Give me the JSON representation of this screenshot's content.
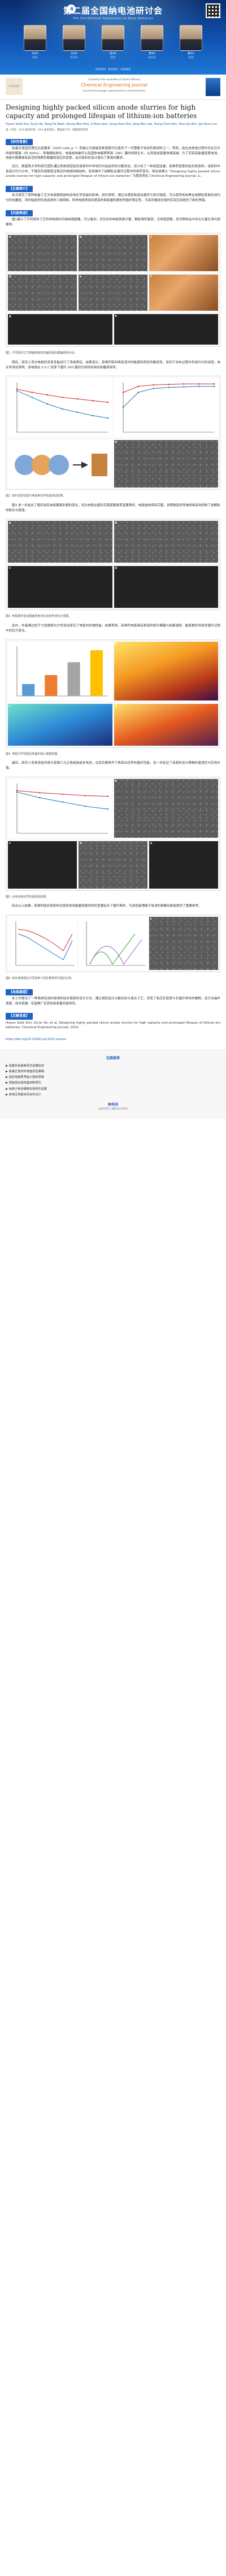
{
  "banner": {
    "title": "第二届全国纳电池研讨会",
    "subtitle": "The 2nd National Symposium on Nano Batteries",
    "logo_text": "纳",
    "speakers": [
      {
        "name": "刘XX",
        "role": "教授"
      },
      {
        "name": "王XX",
        "role": "研究员"
      },
      {
        "name": "张XX",
        "role": "教授"
      },
      {
        "name": "李XX",
        "role": "研究员"
      },
      {
        "name": "陈XX",
        "role": "教授"
      }
    ],
    "foot": "会议时间 · 会议地点 · 扫码报名"
  },
  "journal": {
    "publisher": "ELSEVIER",
    "name": "Chemical Engineering Journal",
    "line1": "Contents lists available at ScienceDirect",
    "line2": "journal homepage: www.elsevier.com/locate/cej"
  },
  "paper": {
    "title": "Designing highly packed silicon anode slurries for high capacity and prolonged lifespan of lithium-ion batteries",
    "authors": "Hyeon Seok Kim, Ka Jin Ko, Sang Ha Baek, Seung Woo Park, Ji Hoon Jeon, Sung Hoon Kim, Jong Wan Lee, Young Chan Kim, Yeon Joo Kim, Jae Hyun Lim",
    "affiliation": "第一作者：XXX   通讯作者：XXX   通讯单位：韩国某大学，韩国某研究院"
  },
  "sections": {
    "abstract_head": "【研究背景】",
    "abstract_text": "硅基负极因其理论比容量高（4200 mAh g⁻¹）而被认为是最有希望替代石墨的下一代锂离子电池负极材料之一。然而，硅在充放电过程中存在巨大的体积膨胀（约 300%），导致颗粒粉化、电极结构破坏以及固体电解质界面（SEI）膜的持续生长，从而造成容量快速衰减。为了实现高能量密度电池，电极中需要具有高活性物质负载量和高压实密度，这对浆料的设计提出了更高的要求。",
    "para2": "近日，韩国某大学的研究团队通过系统调控硅负极浆料中导电剂与粘结剂的分散状态，设计出了一种高固含量、高堆积密度的硅负极浆料。该浆料中各组分均匀分布，干燥后形成致密且稳定的电极网络结构，有效缓冲了硅颗粒在循环过程中的体积变化。相关成果以 “Designing highly packed silicon anode slurries for high capacity and prolonged lifespan of lithium-ion batteries” 为题发表在 Chemical Engineering Journal 上。",
    "intro_head": "【文章简介】",
    "intro_text": "本文研究了浆料制备工艺对电极微观结构及电化学性能的影响。研究表明，通过合理控制混合顺序与剪切强度，可以使导电炭黑在硅颗粒表面形成均匀的包覆层，同时粘结剂形成连续的三维网络。所得电极表现出更高的面容量和更好的循环稳定性，为高负载硅负极的实际应用提供了新的思路。",
    "results_head": "【内容表述】",
    "results_text": "图1展示了不同浆料工艺所得电极的扫描电镜图像。可以看到，优化后的电极表面平整、颗粒堆积紧密，无明显团聚，而对照样品中存在大量孔洞与团聚体。",
    "p_fig1": "图1. 不同浆料工艺制备电极的表面形貌及截面结构对比。",
    "results_text2": "随后，研究人员对电极的流变性能进行了系统表征。结果显示，高堆积浆料具有适中的黏度和良好的触变性，有利于涂布过程中形成均匀的涂层。电化学测试表明，该电极在 0.5 C 倍率下循环 300 圈后仍保持较高的容量保持率。",
    "p_fig2": "图2. 浆料流变性能与电极电化学性能测试结果。",
    "results_text3": "图3 进一步给出了循环前后电极截面形貌的变化。优化电极在循环后厚度膨胀率显著降低，电极结构保持完整，说明致密的导电网络有效抑制了硅颗粒的粉化与脱落。",
    "p_fig3": "图3. 电极循环前后截面厚度变化及结构演化示意图。",
    "results_text4": "此外，作者通过原子力显微镜与力学测试研究了电极的机械性能。结果表明，高堆积电极具有更高的杨氏模量与剥离强度，能够更好地承受循环过程中的应力变化。",
    "p_fig4": "图4. 电极力学性能及表面形貌三维重构图。",
    "results_text5": "最后，研究人员将该硅负极与高镍三元正极组装成全电池，在高负载条件下表现出优异的循环性能，进一步验证了该浆料设计策略的普适性与实用价值。",
    "p_fig5": "图5. 全电池电化学性能测试结果。",
    "results_text6": "综合以上结果，高堆积硅负极浆料在提高电池能量密度的同时显著延长了循环寿命，为高性能锂离子电池的规模化制造提供了重要参考。",
    "p_fig6": "图6. 高负载电极在不同倍率下的容量表现与阻抗分析。",
    "summary_head": "【总结展望】",
    "summary_text": "本工作提出了一种简单有效的高堆积硅负极浆料设计方法，通过调控组分分散状态与混合工艺，实现了高压实密度与长循环寿命的兼顾。该方法操作简便、成本低廉，有望推广至其他高容量负极体系。",
    "ref_head": "【文献信息】",
    "ref_text": "Hyeon Seok Kim, Ka Jin Ko, et al. Designing highly packed silicon anode slurries for high capacity and prolonged lifespan of lithium-ion batteries, Chemical Engineering Journal, 2022.",
    "ref_link": "https://doi.org/10.1016/j.cej.2022.xxxxxx"
  },
  "footer": {
    "title": "往期推荐",
    "recs": [
      "▶ 硅基负极最新研究进展综述",
      "▶ 高镍正极材料表面改性策略",
      "▶ 固态电解质界面工程新思路",
      "▶ 锂金属负极枝晶抑制研究",
      "▶ 钠离子电池硬碳负极研究进展",
      "▶ 高电压电解液添加剂设计"
    ],
    "logo": "纳电池",
    "logo_sub": "长按识别二维码关注我们"
  },
  "charts": {
    "fig2_a": {
      "x": [
        0,
        50,
        100,
        150,
        200,
        250,
        300
      ],
      "series": [
        {
          "values": [
            2.6,
            2.4,
            2.25,
            2.1,
            2.0,
            1.9,
            1.8
          ],
          "color": "#d62728"
        },
        {
          "values": [
            2.5,
            2.1,
            1.7,
            1.4,
            1.2,
            1.0,
            0.85
          ],
          "color": "#1f77b4"
        }
      ],
      "ylim": [
        0,
        3
      ]
    },
    "fig2_b": {
      "x": [
        0,
        50,
        100,
        150,
        200,
        250,
        300
      ],
      "series": [
        {
          "values": [
            98,
            99.2,
            99.5,
            99.6,
            99.7,
            99.7,
            99.7
          ],
          "color": "#d62728"
        },
        {
          "values": [
            95,
            98,
            98.8,
            99.0,
            99.1,
            99.2,
            99.2
          ],
          "color": "#1f77b4"
        }
      ],
      "ylim": [
        90,
        100
      ]
    },
    "fig4_bars": {
      "categories": [
        "S1",
        "S2",
        "S3",
        "S4"
      ],
      "values": [
        1.2,
        2.1,
        3.4,
        4.6
      ],
      "colors": [
        "#5b9bd5",
        "#ed7d31",
        "#a5a5a5",
        "#ffc000"
      ],
      "ylim": [
        0,
        5
      ]
    },
    "fig5_a": {
      "x": [
        0,
        50,
        100,
        150,
        200
      ],
      "series": [
        {
          "values": [
            3.0,
            2.85,
            2.75,
            2.65,
            2.6
          ],
          "color": "#d62728"
        },
        {
          "values": [
            2.9,
            2.5,
            2.2,
            1.9,
            1.7
          ],
          "color": "#1f77b4"
        }
      ],
      "ylim": [
        0,
        3.5
      ]
    }
  }
}
